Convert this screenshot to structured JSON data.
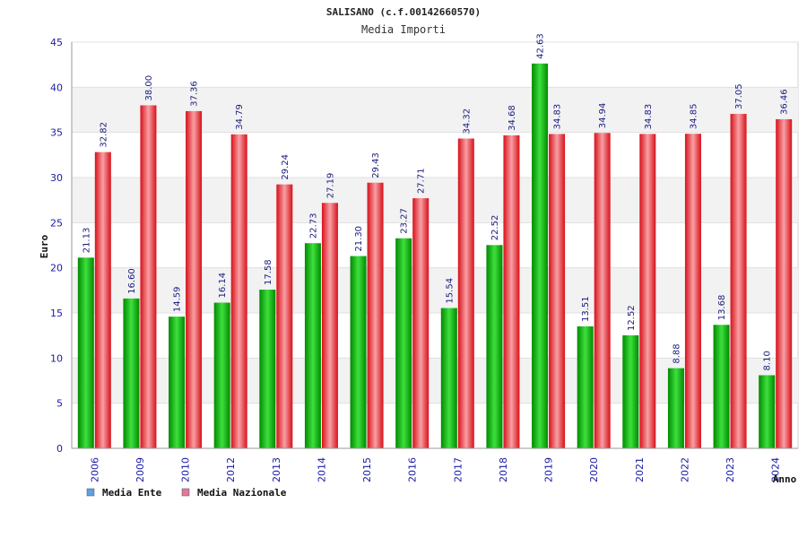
{
  "chart_data": {
    "type": "bar",
    "title": "SALISANO (c.f.00142660570)",
    "subtitle": "Media Importi",
    "xlabel": "Anno",
    "ylabel": "Euro",
    "ylim": [
      0,
      45
    ],
    "yticks": [
      0,
      5,
      10,
      15,
      20,
      25,
      30,
      35,
      40,
      45
    ],
    "grid": true,
    "legend_position": "bottom-left",
    "categories": [
      "2006",
      "2009",
      "2010",
      "2012",
      "2013",
      "2014",
      "2015",
      "2016",
      "2017",
      "2018",
      "2019",
      "2020",
      "2021",
      "2022",
      "2023",
      "2024"
    ],
    "series": [
      {
        "name": "Media Ente",
        "color": "#00b000",
        "legend_color": "#5aa0e6",
        "values": [
          21.13,
          16.6,
          14.59,
          16.14,
          17.58,
          22.73,
          21.3,
          23.27,
          15.54,
          22.52,
          42.63,
          13.51,
          12.52,
          8.88,
          13.68,
          8.1
        ],
        "labels": [
          "21.13",
          "16.60",
          "14.59",
          "16.14",
          "17.58",
          "22.73",
          "21.30",
          "23.27",
          "15.54",
          "22.52",
          "42.63",
          "13.51",
          "12.52",
          "8.88",
          "13.68",
          "8.10"
        ]
      },
      {
        "name": "Media Nazionale",
        "color": "#e8202a",
        "legend_color": "#e07a9a",
        "values": [
          32.82,
          38.0,
          37.36,
          34.79,
          29.24,
          27.19,
          29.43,
          27.71,
          34.32,
          34.68,
          34.83,
          34.94,
          34.83,
          34.85,
          37.05,
          36.46
        ],
        "labels": [
          "32.82",
          "38.00",
          "37.36",
          "34.79",
          "29.24",
          "27.19",
          "29.43",
          "27.71",
          "34.32",
          "34.68",
          "34.83",
          "34.94",
          "34.83",
          "34.85",
          "37.05",
          "36.46"
        ]
      }
    ]
  }
}
